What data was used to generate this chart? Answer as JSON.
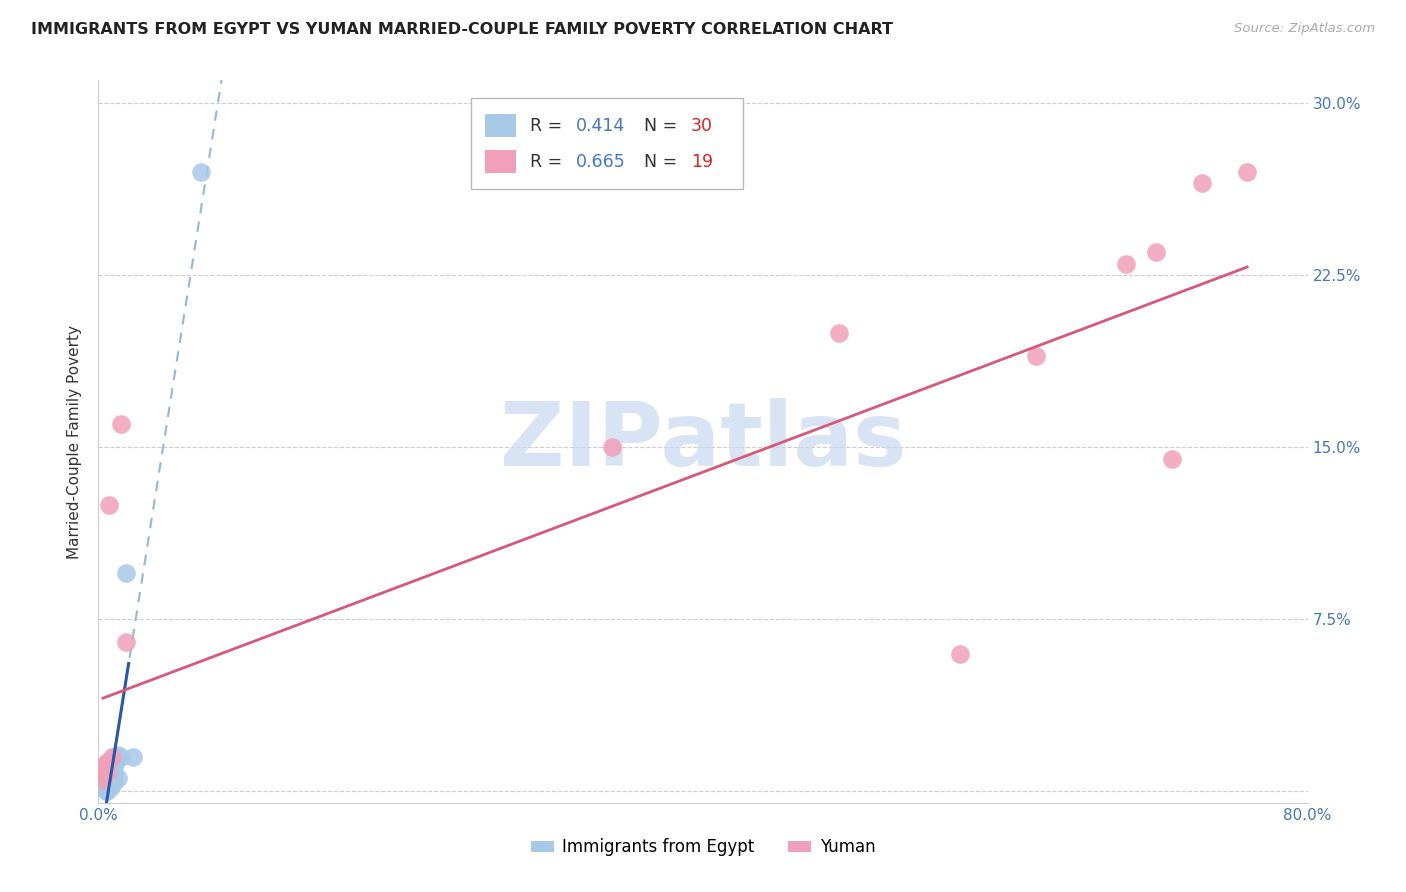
{
  "title": "IMMIGRANTS FROM EGYPT VS YUMAN MARRIED-COUPLE FAMILY POVERTY CORRELATION CHART",
  "source": "Source: ZipAtlas.com",
  "ylabel": "Married-Couple Family Poverty",
  "xlim": [
    0,
    80
  ],
  "ylim": [
    -0.5,
    31
  ],
  "xticks": [
    0,
    10,
    20,
    30,
    40,
    50,
    60,
    70,
    80
  ],
  "xticklabels": [
    "0.0%",
    "",
    "",
    "",
    "",
    "",
    "",
    "",
    "80.0%"
  ],
  "yticks": [
    0,
    7.5,
    15,
    22.5,
    30
  ],
  "yticklabels": [
    "",
    "7.5%",
    "15.0%",
    "22.5%",
    "30.0%"
  ],
  "blue_color": "#a8c8e8",
  "pink_color": "#f0a0b8",
  "blue_line_color": "#2858a8",
  "pink_line_color": "#d85878",
  "blue_dashed_color": "#90b8d8",
  "blue_scatter_x": [
    0.5,
    0.5,
    0.5,
    0.5,
    0.5,
    0.5,
    0.5,
    0.6,
    0.6,
    0.6,
    0.6,
    0.7,
    0.7,
    0.8,
    0.8,
    0.8,
    0.9,
    0.9,
    1.0,
    1.0,
    1.0,
    1.1,
    1.1,
    1.1,
    1.3,
    1.3,
    1.5,
    1.8,
    2.3,
    6.8
  ],
  "blue_scatter_y": [
    0.0,
    0.1,
    0.1,
    0.2,
    0.3,
    0.5,
    0.6,
    0.0,
    0.1,
    0.2,
    0.6,
    0.3,
    0.6,
    0.2,
    0.4,
    0.8,
    0.4,
    1.0,
    0.4,
    0.8,
    1.3,
    1.2,
    1.3,
    1.5,
    0.6,
    1.6,
    1.5,
    9.5,
    1.5,
    27.0
  ],
  "pink_scatter_x": [
    0.3,
    0.4,
    0.4,
    0.5,
    0.6,
    0.6,
    0.7,
    0.9,
    1.5,
    1.8,
    34.0,
    49.0,
    57.0,
    62.0,
    68.0,
    70.0,
    71.0,
    73.0,
    76.0
  ],
  "pink_scatter_y": [
    0.5,
    0.8,
    1.1,
    1.2,
    0.8,
    1.3,
    12.5,
    1.5,
    16.0,
    6.5,
    15.0,
    20.0,
    6.0,
    19.0,
    23.0,
    23.5,
    14.5,
    26.5,
    27.0
  ],
  "watermark_text": "ZIPatlas",
  "watermark_color": "#c8d8f0",
  "bottom_legend": [
    "Immigrants from Egypt",
    "Yuman"
  ]
}
